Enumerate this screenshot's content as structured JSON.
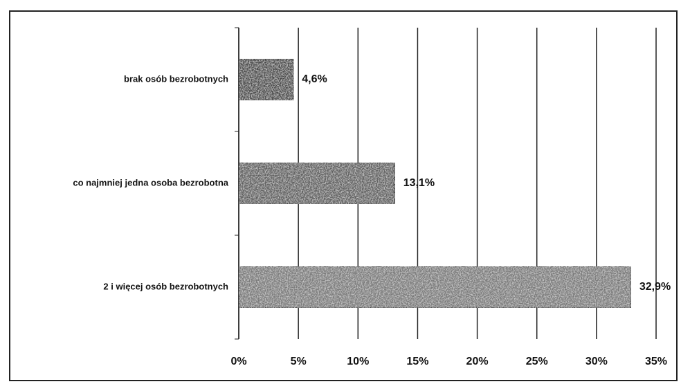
{
  "chart_data": {
    "type": "bar",
    "orientation": "horizontal",
    "categories": [
      "brak osób bezrobotnych",
      "co najmniej jedna osoba bezrobotna",
      "2 i więcej osób bezrobotnych"
    ],
    "values": [
      4.6,
      13.1,
      32.9
    ],
    "value_labels": [
      "4,6%",
      "13,1%",
      "32,9%"
    ],
    "colors": [
      "#4a4a4a",
      "#5e5e5e",
      "#7a7a7a"
    ],
    "xlim": [
      0,
      35
    ],
    "xticks": [
      {
        "value": 0,
        "label": "0%"
      },
      {
        "value": 5,
        "label": "5%"
      },
      {
        "value": 10,
        "label": "10%"
      },
      {
        "value": 15,
        "label": "15%"
      },
      {
        "value": 20,
        "label": "20%"
      },
      {
        "value": 25,
        "label": "25%"
      },
      {
        "value": 30,
        "label": "30%"
      },
      {
        "value": 35,
        "label": "35%"
      }
    ],
    "grid": true
  }
}
